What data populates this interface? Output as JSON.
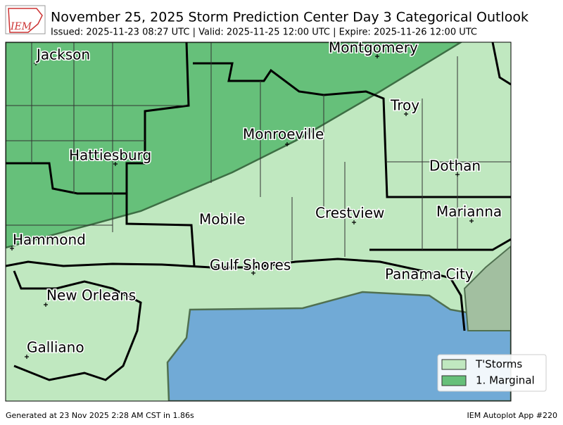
{
  "header": {
    "logo": "IEM",
    "title": "November 25, 2025 Storm Prediction Center Day 3 Categorical Outlook",
    "subtitle": "Issued: 2025-11-23 08:27 UTC | Valid: 2025-11-25 12:00 UTC | Expire: 2025-11-26 12:00 UTC"
  },
  "map": {
    "cities": [
      "Jackson",
      "Montgomery",
      "Troy",
      "Monroeville",
      "Hattiesburg",
      "Dothan",
      "Mobile",
      "Crestview",
      "Marianna",
      "Hammond",
      "Gulf Shores",
      "Panama City",
      "New Orleans",
      "Galliano"
    ]
  },
  "legend": {
    "entries": [
      {
        "label": "T'Storms",
        "color": "#c0e8c0"
      },
      {
        "label": "1. Marginal",
        "color": "#66c07a"
      }
    ]
  },
  "footer": {
    "left": "Generated at 23 Nov 2025 2:28 AM CST in 1.86s",
    "right": "IEM Autoplot App #220"
  }
}
